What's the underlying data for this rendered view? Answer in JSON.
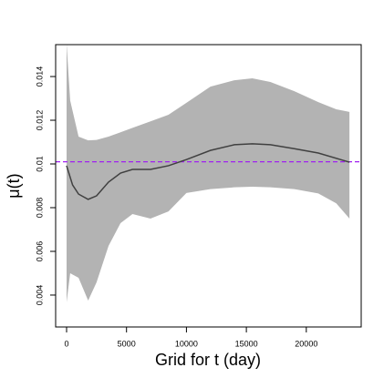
{
  "chart_data": {
    "type": "line",
    "xlabel": "Grid for t (day)",
    "ylabel": "μ(t)",
    "xlim": [
      -913,
      24580
    ],
    "ylim": [
      0.00254,
      0.01546
    ],
    "xticks": [
      0,
      5000,
      10000,
      15000,
      20000
    ],
    "yticks": [
      0.004,
      0.006,
      0.008,
      0.01,
      0.012,
      0.014
    ],
    "band": {
      "color": "#b3b3b3",
      "x": [
        0,
        300,
        1000,
        1800,
        2500,
        3500,
        4500,
        5500,
        7000,
        8500,
        10000,
        12000,
        14000,
        15500,
        17000,
        19000,
        21000,
        22500,
        23600
      ],
      "upper": [
        0.0155,
        0.0129,
        0.01125,
        0.01108,
        0.0111,
        0.01125,
        0.01145,
        0.01165,
        0.01195,
        0.01225,
        0.0128,
        0.01354,
        0.01383,
        0.01392,
        0.01375,
        0.01333,
        0.01283,
        0.0125,
        0.01238
      ],
      "lower": [
        0.00367,
        0.005,
        0.00479,
        0.00375,
        0.00458,
        0.00625,
        0.00729,
        0.00771,
        0.0075,
        0.00783,
        0.00867,
        0.00885,
        0.00893,
        0.00896,
        0.00893,
        0.00885,
        0.00865,
        0.0082,
        0.0075
      ]
    },
    "series": [
      {
        "color": "#404040",
        "x": [
          0,
          500,
          1000,
          1800,
          2500,
          3500,
          4500,
          5500,
          7000,
          8500,
          10000,
          12000,
          14000,
          15500,
          17000,
          19000,
          21000,
          23600
        ],
        "values": [
          0.00992,
          0.00904,
          0.00862,
          0.00838,
          0.00854,
          0.00917,
          0.00958,
          0.00975,
          0.00975,
          0.00992,
          0.0102,
          0.01062,
          0.01088,
          0.01092,
          0.01088,
          0.0107,
          0.0105,
          0.01008
        ]
      }
    ],
    "hline": {
      "value": 0.0101,
      "color": "#a020f0",
      "dashed": true
    }
  }
}
